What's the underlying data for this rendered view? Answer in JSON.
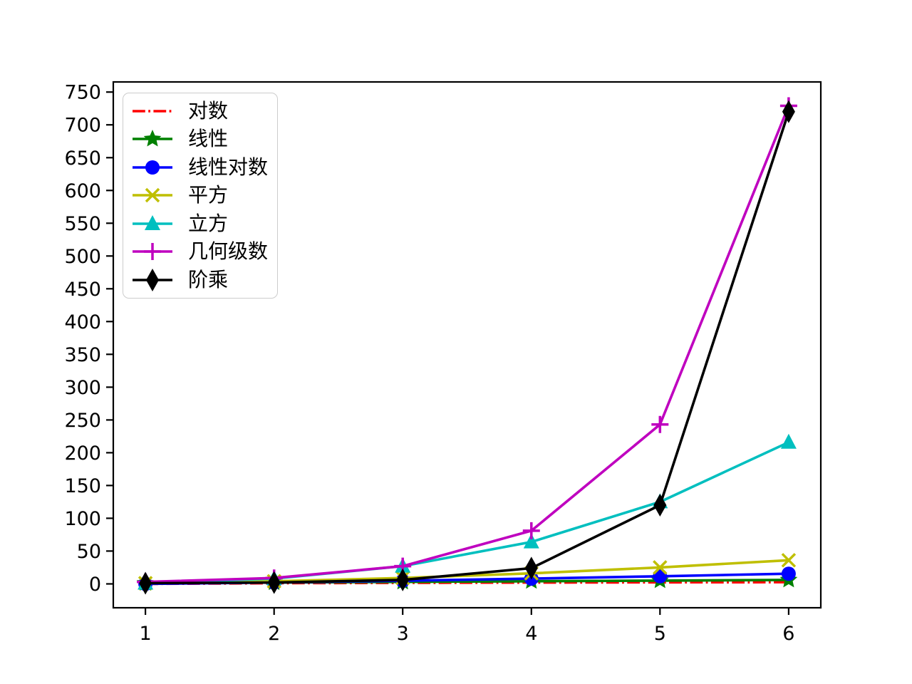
{
  "chart_data": {
    "type": "line",
    "title": "",
    "xlabel": "",
    "ylabel": "",
    "x": [
      1,
      2,
      3,
      4,
      5,
      6
    ],
    "x_tick_labels": [
      "1",
      "2",
      "3",
      "4",
      "5",
      "6"
    ],
    "y_ticks": [
      0,
      50,
      100,
      150,
      200,
      250,
      300,
      350,
      400,
      450,
      500,
      550,
      600,
      650,
      700,
      750
    ],
    "xlim": [
      0.75,
      6.25
    ],
    "ylim": [
      -36.45,
      765.45
    ],
    "grid": false,
    "legend_position": "upper left",
    "axis_color": "#000000",
    "background_color": "#ffffff",
    "series": [
      {
        "name": "对数",
        "color": "#ff0000",
        "marker": "none",
        "linestyle": "dashdot",
        "values": [
          0,
          1,
          1.585,
          2,
          2.3219,
          2.585
        ]
      },
      {
        "name": "线性",
        "color": "#008000",
        "marker": "star",
        "linestyle": "solid",
        "values": [
          1,
          2,
          3,
          4,
          5,
          6
        ]
      },
      {
        "name": "线性对数",
        "color": "#0000ff",
        "marker": "circle",
        "linestyle": "solid",
        "values": [
          0,
          2,
          4.7549,
          8,
          11.6096,
          15.5098
        ]
      },
      {
        "name": "平方",
        "color": "#bfbf00",
        "marker": "x",
        "linestyle": "solid",
        "values": [
          1,
          4,
          9,
          16,
          25,
          36
        ]
      },
      {
        "name": "立方",
        "color": "#00bfbf",
        "marker": "triangle-up",
        "linestyle": "solid",
        "values": [
          1,
          8,
          27,
          64,
          125,
          216
        ]
      },
      {
        "name": "几何级数",
        "color": "#bf00bf",
        "marker": "plus",
        "linestyle": "solid",
        "values": [
          3,
          9,
          27,
          81,
          243,
          729
        ]
      },
      {
        "name": "阶乘",
        "color": "#000000",
        "marker": "thin-diamond",
        "linestyle": "solid",
        "values": [
          1,
          2,
          6,
          24,
          120,
          720
        ]
      }
    ]
  }
}
